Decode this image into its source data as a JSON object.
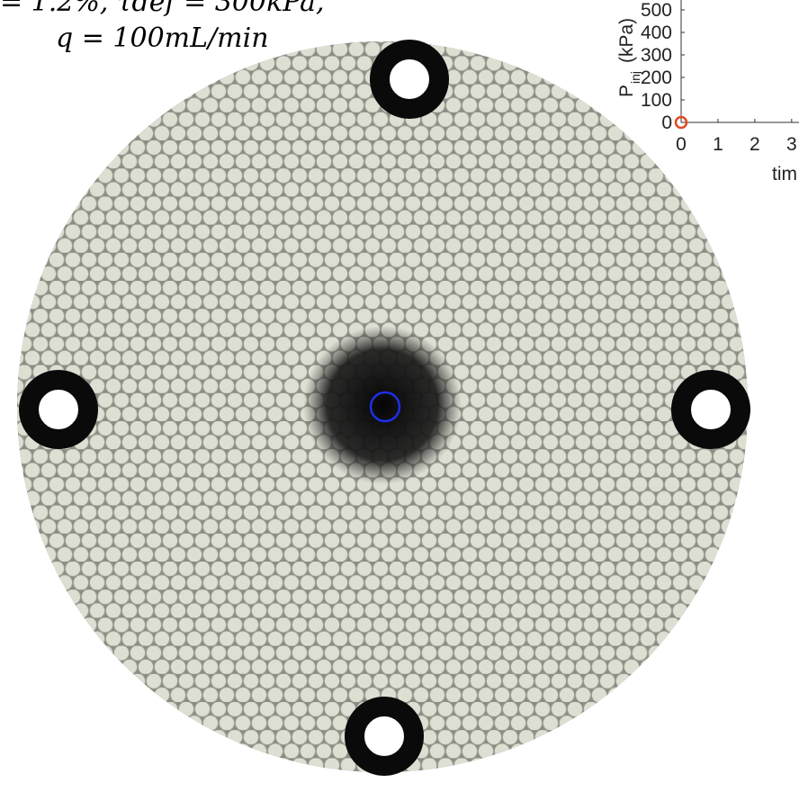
{
  "caption": {
    "line1": "= 1.2%, τdef = 300kPa,",
    "line2": "q = 100mL/min"
  },
  "chart_data": {
    "type": "scatter",
    "ylabel": [
      "P",
      "inj",
      "(kPa)"
    ],
    "xlabel": "tim",
    "x": [
      0
    ],
    "values": [
      0
    ],
    "color": "#e04a1e",
    "xlim": [
      0,
      3.2
    ],
    "xticks": [
      0,
      1,
      2,
      3
    ],
    "ylim": [
      0,
      500
    ],
    "yticks": [
      0,
      100,
      200,
      300,
      400,
      500
    ]
  }
}
